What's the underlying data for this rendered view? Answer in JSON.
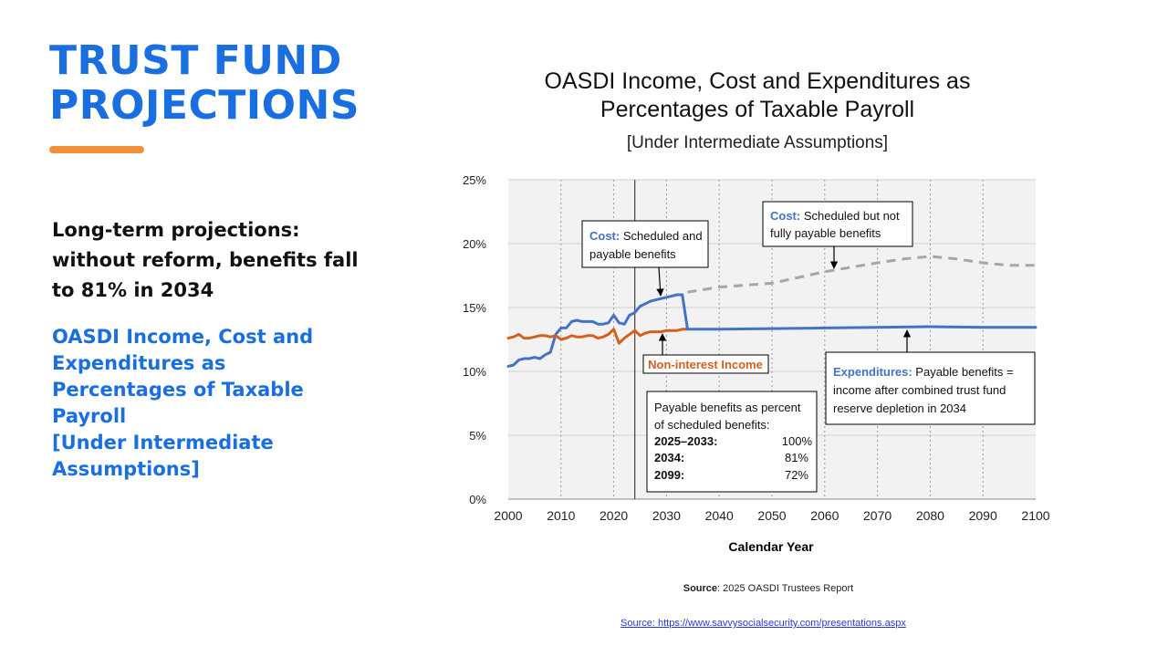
{
  "slide": {
    "title_line1": "TRUST FUND",
    "title_line2": "PROJECTIONS",
    "summary": "Long-term projections: without reform, benefits fall to 81% in 2034",
    "subtitle_lines": [
      "OASDI Income, Cost and",
      "Expenditures as",
      "Percentages of Taxable",
      "Payroll",
      "[Under Intermediate",
      "Assumptions]"
    ],
    "source_link": "Source: https://www.savvysocialsecurity.com/presentations.aspx"
  },
  "colors": {
    "title_blue": "#1a6fe0",
    "accent_orange": "#f0913a",
    "cost_blue": "#4472c4",
    "income_orange": "#d4601e",
    "scheduled_gray": "#a6a6a6",
    "plot_bg": "#f2f2f2"
  },
  "chart_data": {
    "type": "line",
    "title": "OASDI Income, Cost and Expenditures as Percentages of Taxable Payroll",
    "title_line1": "OASDI Income, Cost and Expenditures as",
    "title_line2": "Percentages of Taxable Payroll",
    "subtitle": "[Under Intermediate Assumptions]",
    "xlabel": "Calendar Year",
    "ylabel": "",
    "xlim": [
      2000,
      2100
    ],
    "ylim": [
      0,
      25
    ],
    "x_ticks": [
      2000,
      2010,
      2020,
      2030,
      2040,
      2050,
      2060,
      2070,
      2080,
      2090,
      2100
    ],
    "y_ticks": [
      0,
      5,
      10,
      15,
      20,
      25
    ],
    "y_tick_labels": [
      "0%",
      "5%",
      "10%",
      "15%",
      "20%",
      "25%"
    ],
    "grid": true,
    "vertical_marker_year": 2024,
    "series": [
      {
        "name": "Cost: Scheduled and payable benefits",
        "color_key": "cost_blue",
        "style": "solid",
        "x": [
          2000,
          2001,
          2002,
          2003,
          2004,
          2005,
          2006,
          2007,
          2008,
          2009,
          2010,
          2011,
          2012,
          2013,
          2014,
          2015,
          2016,
          2017,
          2018,
          2019,
          2020,
          2021,
          2022,
          2023,
          2024,
          2025,
          2026,
          2027,
          2028,
          2029,
          2030,
          2031,
          2032,
          2033
        ],
        "values": [
          10.4,
          10.5,
          10.9,
          11.0,
          11.0,
          11.1,
          11.0,
          11.3,
          11.5,
          12.9,
          13.4,
          13.4,
          13.9,
          14.0,
          13.9,
          13.9,
          13.9,
          13.7,
          13.7,
          13.8,
          14.4,
          13.8,
          13.7,
          14.4,
          14.6,
          15.1,
          15.3,
          15.5,
          15.6,
          15.7,
          15.8,
          15.9,
          16.0,
          16.0
        ]
      },
      {
        "name": "Cost: Scheduled but not fully payable benefits",
        "color_key": "scheduled_gray",
        "style": "dashed",
        "x": [
          2034,
          2040,
          2050,
          2060,
          2070,
          2075,
          2080,
          2085,
          2090,
          2095,
          2100
        ],
        "values": [
          16.2,
          16.6,
          16.9,
          17.8,
          18.5,
          18.8,
          19.0,
          18.8,
          18.5,
          18.3,
          18.3
        ]
      },
      {
        "name": "Non-interest Income",
        "color_key": "income_orange",
        "style": "solid",
        "x": [
          2000,
          2001,
          2002,
          2003,
          2004,
          2005,
          2006,
          2007,
          2008,
          2009,
          2010,
          2011,
          2012,
          2013,
          2014,
          2015,
          2016,
          2017,
          2018,
          2019,
          2020,
          2021,
          2022,
          2023,
          2024,
          2025,
          2026,
          2027,
          2028,
          2029,
          2030,
          2031,
          2032,
          2033,
          2034
        ],
        "values": [
          12.6,
          12.7,
          12.9,
          12.6,
          12.6,
          12.7,
          12.8,
          12.8,
          12.7,
          12.8,
          12.5,
          12.6,
          12.8,
          12.7,
          12.7,
          12.8,
          12.8,
          12.6,
          12.7,
          12.9,
          13.3,
          12.2,
          12.6,
          12.9,
          13.2,
          12.8,
          13.0,
          13.1,
          13.1,
          13.1,
          13.2,
          13.2,
          13.2,
          13.3,
          13.3
        ]
      },
      {
        "name": "Expenditures: Payable benefits = income after combined trust fund reserve depletion in 2034",
        "color_key": "cost_blue",
        "style": "solid",
        "x": [
          2033,
          2034,
          2040,
          2050,
          2060,
          2070,
          2080,
          2090,
          2100
        ],
        "values": [
          16.0,
          13.3,
          13.3,
          13.35,
          13.4,
          13.45,
          13.5,
          13.45,
          13.45
        ]
      }
    ],
    "annotations": {
      "cost_scheduled_payable": {
        "bold": "Cost:",
        "text1": " Scheduled and",
        "text2": "payable benefits"
      },
      "cost_not_payable": {
        "bold": "Cost:",
        "text1": " Scheduled but not",
        "text2": "fully payable benefits"
      },
      "non_interest_income": "Non-interest Income",
      "expenditures": {
        "bold": "Expenditures:",
        "text1": " Payable benefits =",
        "text2": "income after combined trust fund",
        "text3": "reserve depletion in 2034"
      },
      "payable_table": {
        "title1": "Payable benefits as percent",
        "title2": "of scheduled benefits:",
        "rows": [
          {
            "label": "2025–2033:",
            "value": "100%"
          },
          {
            "label": "2034:",
            "value": "81%"
          },
          {
            "label": "2099:",
            "value": "72%"
          }
        ]
      }
    },
    "source_label": "Source",
    "source_text": ": 2025 OASDI Trustees Report"
  }
}
